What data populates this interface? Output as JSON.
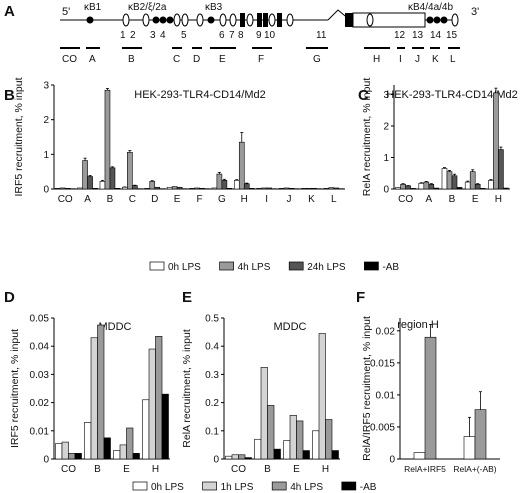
{
  "figure": {
    "series_colors": {
      "0h LPS": "#ffffff",
      "1h LPS": "#d4d4d4",
      "4h LPS": "#9a9a9a",
      "24h LPS": "#555555",
      "-AB": "#000000"
    },
    "panel_a": {
      "letter": "A",
      "end5": "5'",
      "end3": "3'",
      "kappa_sites": [
        "κB1",
        "κB2/ξ/2a",
        "κB3",
        "κB4/4a/4b"
      ],
      "exon_numbers": [
        "1",
        "2",
        "3",
        "4",
        "5",
        "6",
        "7",
        "8",
        "9",
        "10",
        "11",
        "12",
        "13",
        "14",
        "15"
      ],
      "regions": [
        "CO",
        "A",
        "B",
        "C",
        "D",
        "E",
        "F",
        "G",
        "H",
        "I",
        "J",
        "K",
        "L"
      ]
    }
  },
  "chart_data": [
    {
      "panel": "B",
      "type": "bar",
      "title": "HEK-293-TLR4-CD14/Md2",
      "xlabel": "",
      "ylabel": "IRF5 recruitment, % input",
      "ylim": [
        0,
        3
      ],
      "yticks": [
        "0",
        "1",
        "2",
        "3"
      ],
      "categories": [
        "CO",
        "A",
        "B",
        "C",
        "D",
        "E",
        "F",
        "G",
        "H",
        "I",
        "J",
        "K",
        "L"
      ],
      "series": [
        {
          "name": "0h LPS",
          "values": [
            0.02,
            0.03,
            0.22,
            0.05,
            0.02,
            0.05,
            0.02,
            0.03,
            0.25,
            0.02,
            0.02,
            0.02,
            0.02
          ],
          "err": [
            0,
            0,
            0.03,
            0.01,
            0,
            0,
            0,
            0,
            0.02,
            0,
            0,
            0,
            0
          ]
        },
        {
          "name": "4h LPS",
          "values": [
            0.03,
            0.82,
            2.85,
            1.06,
            0.22,
            0.07,
            0.03,
            0.43,
            1.35,
            0.03,
            0.03,
            0.02,
            0.04
          ],
          "err": [
            0,
            0.07,
            0.05,
            0.05,
            0.02,
            0,
            0,
            0.05,
            0.28,
            0,
            0,
            0,
            0
          ]
        },
        {
          "name": "24h LPS",
          "values": [
            0.02,
            0.36,
            0.61,
            0.1,
            0.05,
            0.05,
            0.02,
            0.25,
            0.15,
            0.03,
            0.02,
            0.02,
            0.03
          ],
          "err": [
            0,
            0.03,
            0.03,
            0.01,
            0,
            0,
            0,
            0.03,
            0.02,
            0,
            0,
            0,
            0
          ]
        },
        {
          "name": "-AB",
          "values": [
            0.01,
            0.02,
            0.02,
            0.01,
            0.01,
            0.01,
            0.01,
            0.02,
            0.02,
            0.01,
            0.01,
            0.01,
            0.01
          ],
          "err": [
            0,
            0,
            0,
            0,
            0,
            0,
            0,
            0,
            0,
            0,
            0,
            0,
            0
          ]
        }
      ],
      "legend": [
        "0h LPS",
        "4h LPS",
        "24h LPS",
        "-AB"
      ],
      "legend_position": "bottom"
    },
    {
      "panel": "C",
      "type": "bar",
      "title": "HEK-293-TLR4-CD14/Md2",
      "xlabel": "",
      "ylabel": "RelA recruitment, % input",
      "ylim": [
        0,
        3.3
      ],
      "yticks": [
        "0",
        "1",
        "2",
        "3"
      ],
      "categories": [
        "CO",
        "A",
        "B",
        "E",
        "H"
      ],
      "series": [
        {
          "name": "0h LPS",
          "values": [
            0.05,
            0.18,
            0.65,
            0.22,
            0.27
          ],
          "err": [
            0,
            0.02,
            0.03,
            0.03,
            0.03
          ]
        },
        {
          "name": "4h LPS",
          "values": [
            0.15,
            0.22,
            0.55,
            0.55,
            3.05
          ],
          "err": [
            0.02,
            0.02,
            0.04,
            0.06,
            0.15
          ]
        },
        {
          "name": "24h LPS",
          "values": [
            0.1,
            0.15,
            0.42,
            0.15,
            1.25
          ],
          "err": [
            0.01,
            0.02,
            0.05,
            0.02,
            0.08
          ]
        },
        {
          "name": "-AB",
          "values": [
            0.02,
            0.03,
            0.05,
            0.02,
            0.03
          ],
          "err": [
            0,
            0,
            0,
            0,
            0
          ]
        }
      ],
      "legend_position": "bottom"
    },
    {
      "panel": "D",
      "type": "bar",
      "title": "MDDC",
      "xlabel": "",
      "ylabel": "IRF5 recruitment, % input",
      "ylim": [
        0,
        0.05
      ],
      "yticks": [
        "0",
        "0.01",
        "0.02",
        "0.03",
        "0.04",
        "0.05"
      ],
      "categories": [
        "CO",
        "B",
        "E",
        "H"
      ],
      "series": [
        {
          "name": "0h LPS",
          "values": [
            0.0055,
            0.013,
            0.003,
            0.021
          ]
        },
        {
          "name": "1h LPS",
          "values": [
            0.006,
            0.043,
            0.005,
            0.039
          ]
        },
        {
          "name": "4h LPS",
          "values": [
            0.002,
            0.0475,
            0.011,
            0.0435
          ]
        },
        {
          "name": "-AB",
          "values": [
            0.002,
            0.0075,
            0.002,
            0.023
          ]
        }
      ],
      "legend_position": "bottom"
    },
    {
      "panel": "E",
      "type": "bar",
      "title": "MDDC",
      "xlabel": "",
      "ylabel": "RelA recruitment, % input",
      "ylim": [
        0,
        0.5
      ],
      "yticks": [
        "0",
        "0.1",
        "0.2",
        "0.3",
        "0.4",
        "0.5"
      ],
      "categories": [
        "CO",
        "B",
        "E",
        "H"
      ],
      "series": [
        {
          "name": "0h LPS",
          "values": [
            0.01,
            0.07,
            0.065,
            0.1
          ]
        },
        {
          "name": "1h LPS",
          "values": [
            0.015,
            0.325,
            0.155,
            0.445
          ]
        },
        {
          "name": "4h LPS",
          "values": [
            0.015,
            0.19,
            0.135,
            0.14
          ]
        },
        {
          "name": "-AB",
          "values": [
            0.005,
            0.035,
            0.03,
            0.03
          ]
        }
      ],
      "legend": [
        "0h LPS",
        "1h LPS",
        "4h LPS",
        "-AB"
      ],
      "legend_position": "bottom"
    },
    {
      "panel": "F",
      "type": "bar",
      "title": "region H",
      "xlabel": "",
      "ylabel": "RelA/IRF5 recruitment, % input",
      "ylim": [
        0,
        0.022
      ],
      "yticks": [
        "0",
        "0.005",
        "0.01",
        "0.015",
        "0.02"
      ],
      "categories": [
        "RelA+IRF5",
        "RelA+(-AB)"
      ],
      "series": [
        {
          "name": "0h LPS",
          "values": [
            0.001,
            0.0035
          ],
          "err": [
            0,
            0.003
          ]
        },
        {
          "name": "4h LPS",
          "values": [
            0.019,
            0.0077
          ],
          "err": [
            0.002,
            0.0028
          ]
        }
      ],
      "legend_position": "bottom"
    }
  ]
}
